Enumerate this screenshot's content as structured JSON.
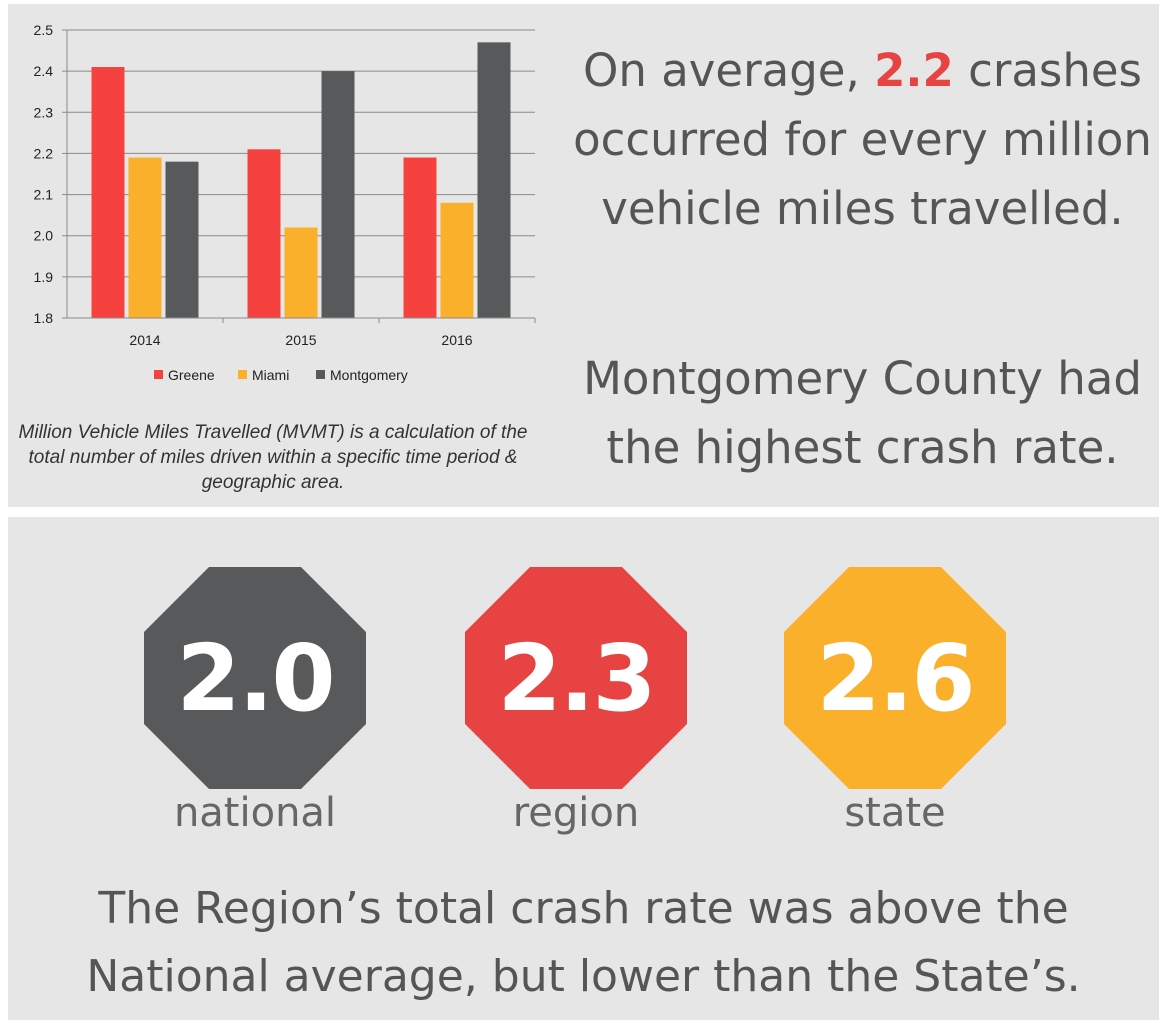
{
  "chart_data": {
    "type": "bar",
    "categories": [
      "2014",
      "2015",
      "2016"
    ],
    "series": [
      {
        "name": "Greene",
        "color": "#f5423e",
        "values": [
          2.41,
          2.21,
          2.19
        ]
      },
      {
        "name": "Miami",
        "color": "#fbb02b",
        "values": [
          2.19,
          2.02,
          2.08
        ]
      },
      {
        "name": "Montgomery",
        "color": "#58595b",
        "values": [
          2.18,
          2.4,
          2.47
        ]
      }
    ],
    "yticks": [
      "1.8",
      "1.9",
      "2.0",
      "2.1",
      "2.2",
      "2.3",
      "2.4",
      "2.5"
    ],
    "ylim": [
      1.8,
      2.5
    ],
    "grid": true,
    "legend_position": "bottom"
  },
  "note": "Million Vehicle Miles Travelled (MVMT) is a calculation of the total number of miles driven within a specific time period & geographic area.",
  "average": {
    "prefix": "On average, ",
    "value": "2.2",
    "suffix": " crashes occurred for every million vehicle miles travelled."
  },
  "county_statement": "Montgomery County had the highest crash rate.",
  "rates": [
    {
      "value": "2.0",
      "label": "national",
      "color": "#58595b"
    },
    {
      "value": "2.3",
      "label": "region",
      "color": "#e84343"
    },
    {
      "value": "2.6",
      "label": "state",
      "color": "#fbb02b"
    }
  ],
  "footer": "The Region’s total crash rate was above the National average, but lower than the State’s."
}
